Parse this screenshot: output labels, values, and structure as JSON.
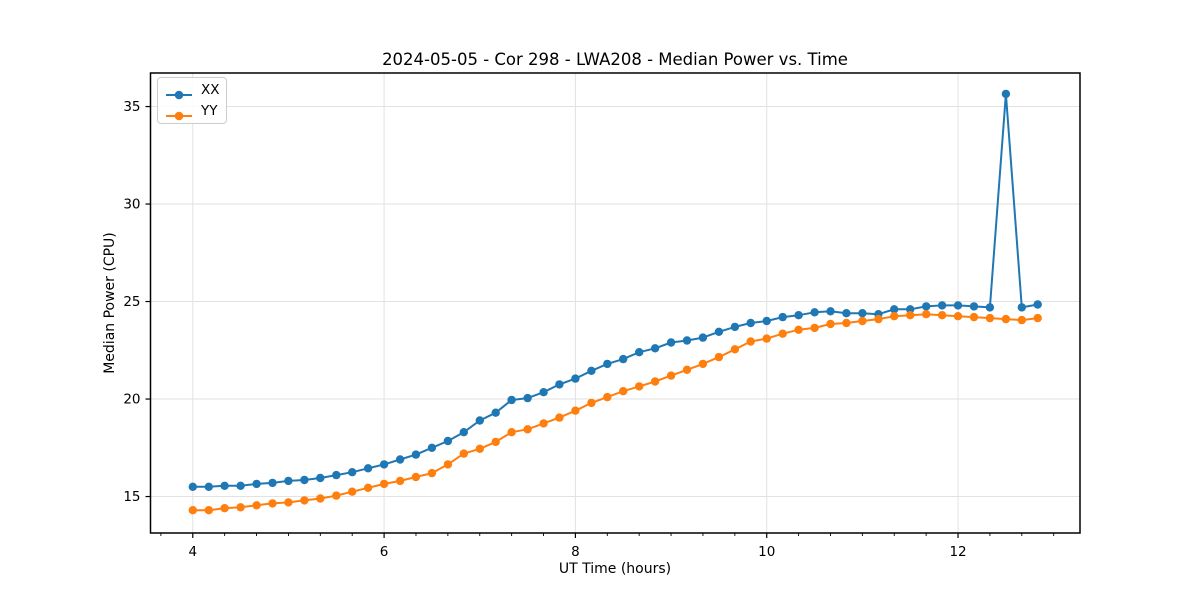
{
  "figure": {
    "title": "2024-05-05 - Cor 298 - LWA208 - Median Power vs. Time",
    "xlabel": "UT Time (hours)",
    "ylabel": "Median Power (CPU)"
  },
  "chart_data": {
    "type": "line",
    "title": "2024-05-05 - Cor 298 - LWA208 - Median Power vs. Time",
    "xlabel": "UT Time (hours)",
    "ylabel": "Median Power (CPU)",
    "grid": true,
    "legend_position": "upper left",
    "xlim": [
      3.558,
      13.275
    ],
    "ylim": [
      13.13,
      36.72
    ],
    "x_ticks": [
      4,
      6,
      8,
      10,
      12
    ],
    "y_ticks": [
      15,
      20,
      25,
      30,
      35
    ],
    "x_minor_step": 0.33333,
    "marker": "o",
    "x": [
      4.0,
      4.167,
      4.333,
      4.5,
      4.667,
      4.833,
      5.0,
      5.167,
      5.333,
      5.5,
      5.667,
      5.833,
      6.0,
      6.167,
      6.333,
      6.5,
      6.667,
      6.833,
      7.0,
      7.167,
      7.333,
      7.5,
      7.667,
      7.833,
      8.0,
      8.167,
      8.333,
      8.5,
      8.667,
      8.833,
      9.0,
      9.167,
      9.333,
      9.5,
      9.667,
      9.833,
      10.0,
      10.167,
      10.333,
      10.5,
      10.667,
      10.833,
      11.0,
      11.167,
      11.333,
      11.5,
      11.667,
      11.833,
      12.0,
      12.167,
      12.333,
      12.5,
      12.667,
      12.833
    ],
    "series": [
      {
        "name": "XX",
        "color": "#1f77b4",
        "values": [
          15.5,
          15.5,
          15.55,
          15.55,
          15.65,
          15.7,
          15.8,
          15.85,
          15.95,
          16.1,
          16.25,
          16.45,
          16.65,
          16.9,
          17.15,
          17.5,
          17.85,
          18.3,
          18.9,
          19.3,
          19.95,
          20.05,
          20.35,
          20.75,
          21.05,
          21.45,
          21.8,
          22.05,
          22.4,
          22.6,
          22.9,
          23.0,
          23.15,
          23.45,
          23.7,
          23.9,
          24.0,
          24.2,
          24.3,
          24.45,
          24.5,
          24.4,
          24.4,
          24.35,
          24.6,
          24.6,
          24.75,
          24.8,
          24.8,
          24.75,
          24.7,
          35.65,
          24.7,
          24.85
        ]
      },
      {
        "name": "YY",
        "color": "#ff7f0e",
        "values": [
          14.3,
          14.3,
          14.4,
          14.45,
          14.55,
          14.65,
          14.7,
          14.8,
          14.9,
          15.05,
          15.25,
          15.45,
          15.65,
          15.8,
          16.0,
          16.2,
          16.65,
          17.2,
          17.45,
          17.8,
          18.3,
          18.45,
          18.75,
          19.05,
          19.4,
          19.8,
          20.1,
          20.4,
          20.65,
          20.9,
          21.2,
          21.5,
          21.8,
          22.15,
          22.55,
          22.95,
          23.1,
          23.35,
          23.55,
          23.65,
          23.85,
          23.9,
          24.0,
          24.1,
          24.25,
          24.3,
          24.35,
          24.3,
          24.25,
          24.2,
          24.15,
          24.1,
          24.05,
          24.15
        ]
      }
    ]
  },
  "colors": {
    "background": "#ffffff",
    "grid": "#e2e2e2",
    "spine": "#000000",
    "text": "#000000",
    "legend_border": "#cccccc",
    "series_xx": "#1f77b4",
    "series_yy": "#ff7f0e"
  }
}
